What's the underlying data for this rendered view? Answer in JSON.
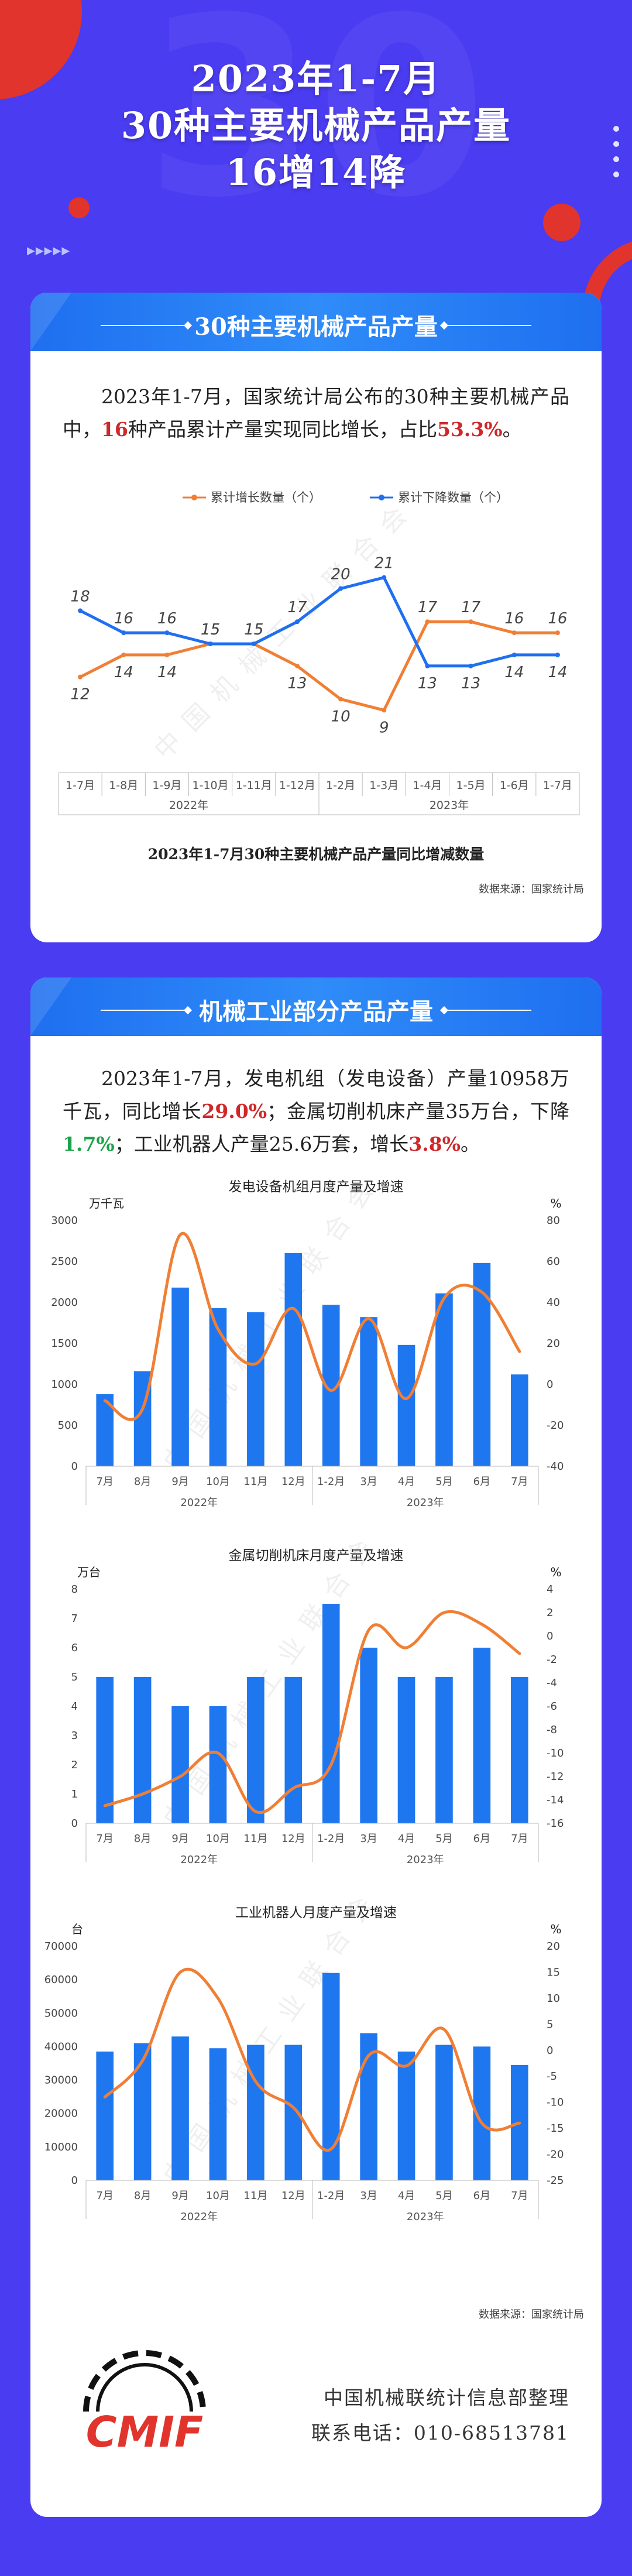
{
  "header": {
    "title_line1": "2023年1-7月",
    "title_line2": "30种主要机械产品产量",
    "title_line3": "16增14降"
  },
  "colors": {
    "background": "#4a3cf0",
    "card_header": "#2f8cf8",
    "accent_red": "#d0282a",
    "accent_green": "#1ba34a",
    "series_orange": "#f07f35",
    "series_blue": "#1f6ff0",
    "bar_blue": "#1f77f0"
  },
  "section1": {
    "title": "30种主要机械产品产量",
    "para_a": "2023年1-7月，国家统计局公布的30种主要机械产品中，",
    "para_num": "16",
    "para_b": "种产品累计产量实现同比增长，占比",
    "para_pct": "53.3%",
    "para_c": "。",
    "caption": "2023年1-7月30种主要机械产品产量同比增减数量",
    "source": "数据来源：国家统计局"
  },
  "section2": {
    "title": "机械工业部分产品产量",
    "p1": "2023年1-7月，发电机组（发电设备）产量10958万千瓦，同比增长",
    "v1": "29.0%",
    "p2": "；金属切削机床产量35万台，下降",
    "v2": "1.7%",
    "p3": "；工业机器人产量25.6万套，增长",
    "v3": "3.8%",
    "p4": "。",
    "source": "数据来源：国家统计局"
  },
  "footer": {
    "logo_text": "CMIF",
    "org": "中国机械联统计信息部整理",
    "phone": "联系电话：010-68513781"
  },
  "watermark": "中国机械工业联合会",
  "chart_data": [
    {
      "type": "line",
      "categories": [
        "1-7月",
        "1-8月",
        "1-9月",
        "1-10月",
        "1-11月",
        "1-12月",
        "1-2月",
        "1-3月",
        "1-4月",
        "1-5月",
        "1-6月",
        "1-7月"
      ],
      "year_groups": [
        {
          "label": "2022年",
          "count": 6
        },
        {
          "label": "2023年",
          "count": 6
        }
      ],
      "series": [
        {
          "name": "累计增长数量（个）",
          "values": [
            12,
            14,
            14,
            15,
            15,
            13,
            10,
            9,
            17,
            17,
            16,
            16
          ]
        },
        {
          "name": "累计下降数量（个）",
          "values": [
            18,
            16,
            16,
            15,
            15,
            17,
            20,
            21,
            13,
            13,
            14,
            14
          ]
        }
      ],
      "title": "2023年1-7月30种主要机械产品产量同比增减数量",
      "legend": "top-center",
      "ylim": [
        6,
        24
      ]
    },
    {
      "type": "bar",
      "title": "发电设备机组月度产量及增速",
      "categories": [
        "7月",
        "8月",
        "9月",
        "10月",
        "11月",
        "12月",
        "1-2月",
        "3月",
        "4月",
        "5月",
        "6月",
        "7月"
      ],
      "year_groups": [
        {
          "label": "2022年",
          "count": 6
        },
        {
          "label": "2023年",
          "count": 6
        }
      ],
      "bar_unit": "万千瓦",
      "line_unit": "%",
      "series": [
        {
          "name": "产量",
          "values": [
            880,
            1160,
            2180,
            1930,
            1880,
            2600,
            1970,
            1820,
            1480,
            2110,
            2480,
            1120
          ]
        },
        {
          "name": "增速",
          "values": [
            -8,
            -12,
            73,
            27,
            10,
            37,
            -3,
            32,
            -7,
            42,
            45,
            16
          ]
        }
      ],
      "ylim": [
        0,
        3000
      ],
      "y2lim": [
        -40,
        80
      ],
      "yticks": [
        0,
        500,
        1000,
        1500,
        2000,
        2500,
        3000
      ],
      "y2ticks": [
        -40,
        -20,
        0,
        20,
        40,
        60,
        80
      ]
    },
    {
      "type": "bar",
      "title": "金属切削机床月度产量及增速",
      "categories": [
        "7月",
        "8月",
        "9月",
        "10月",
        "11月",
        "12月",
        "1-2月",
        "3月",
        "4月",
        "5月",
        "6月",
        "7月"
      ],
      "year_groups": [
        {
          "label": "2022年",
          "count": 6
        },
        {
          "label": "2023年",
          "count": 6
        }
      ],
      "bar_unit": "万台",
      "line_unit": "%",
      "series": [
        {
          "name": "产量",
          "values": [
            5,
            5,
            4,
            4,
            5,
            5,
            7.5,
            6,
            5,
            5,
            6,
            5
          ]
        },
        {
          "name": "增速",
          "values": [
            -14.5,
            -13.5,
            -12,
            -10,
            -15,
            -13,
            -11,
            0.5,
            -1,
            2,
            1,
            -1.5
          ]
        }
      ],
      "ylim": [
        0,
        8
      ],
      "y2lim": [
        -16,
        4
      ],
      "yticks": [
        0,
        1,
        2,
        3,
        4,
        5,
        6,
        7,
        8
      ],
      "y2ticks": [
        -16,
        -14,
        -12,
        -10,
        -8,
        -6,
        -4,
        -2,
        0,
        2,
        4
      ]
    },
    {
      "type": "bar",
      "title": "工业机器人月度产量及增速",
      "categories": [
        "7月",
        "8月",
        "9月",
        "10月",
        "11月",
        "12月",
        "1-2月",
        "3月",
        "4月",
        "5月",
        "6月",
        "7月"
      ],
      "year_groups": [
        {
          "label": "2022年",
          "count": 6
        },
        {
          "label": "2023年",
          "count": 6
        }
      ],
      "bar_unit": "台",
      "line_unit": "%",
      "series": [
        {
          "name": "产量",
          "values": [
            38500,
            41000,
            43000,
            39500,
            40500,
            40500,
            62000,
            44000,
            38500,
            40500,
            40000,
            34500
          ]
        },
        {
          "name": "增速",
          "values": [
            -9,
            -2,
            15,
            10,
            -6,
            -11,
            -19,
            -1,
            -3,
            4,
            -14,
            -14
          ]
        }
      ],
      "ylim": [
        0,
        70000
      ],
      "y2lim": [
        -25,
        20
      ],
      "yticks": [
        0,
        10000,
        20000,
        30000,
        40000,
        50000,
        60000,
        70000
      ],
      "y2ticks": [
        -25,
        -20,
        -15,
        -10,
        -5,
        0,
        5,
        10,
        15,
        20
      ]
    }
  ]
}
